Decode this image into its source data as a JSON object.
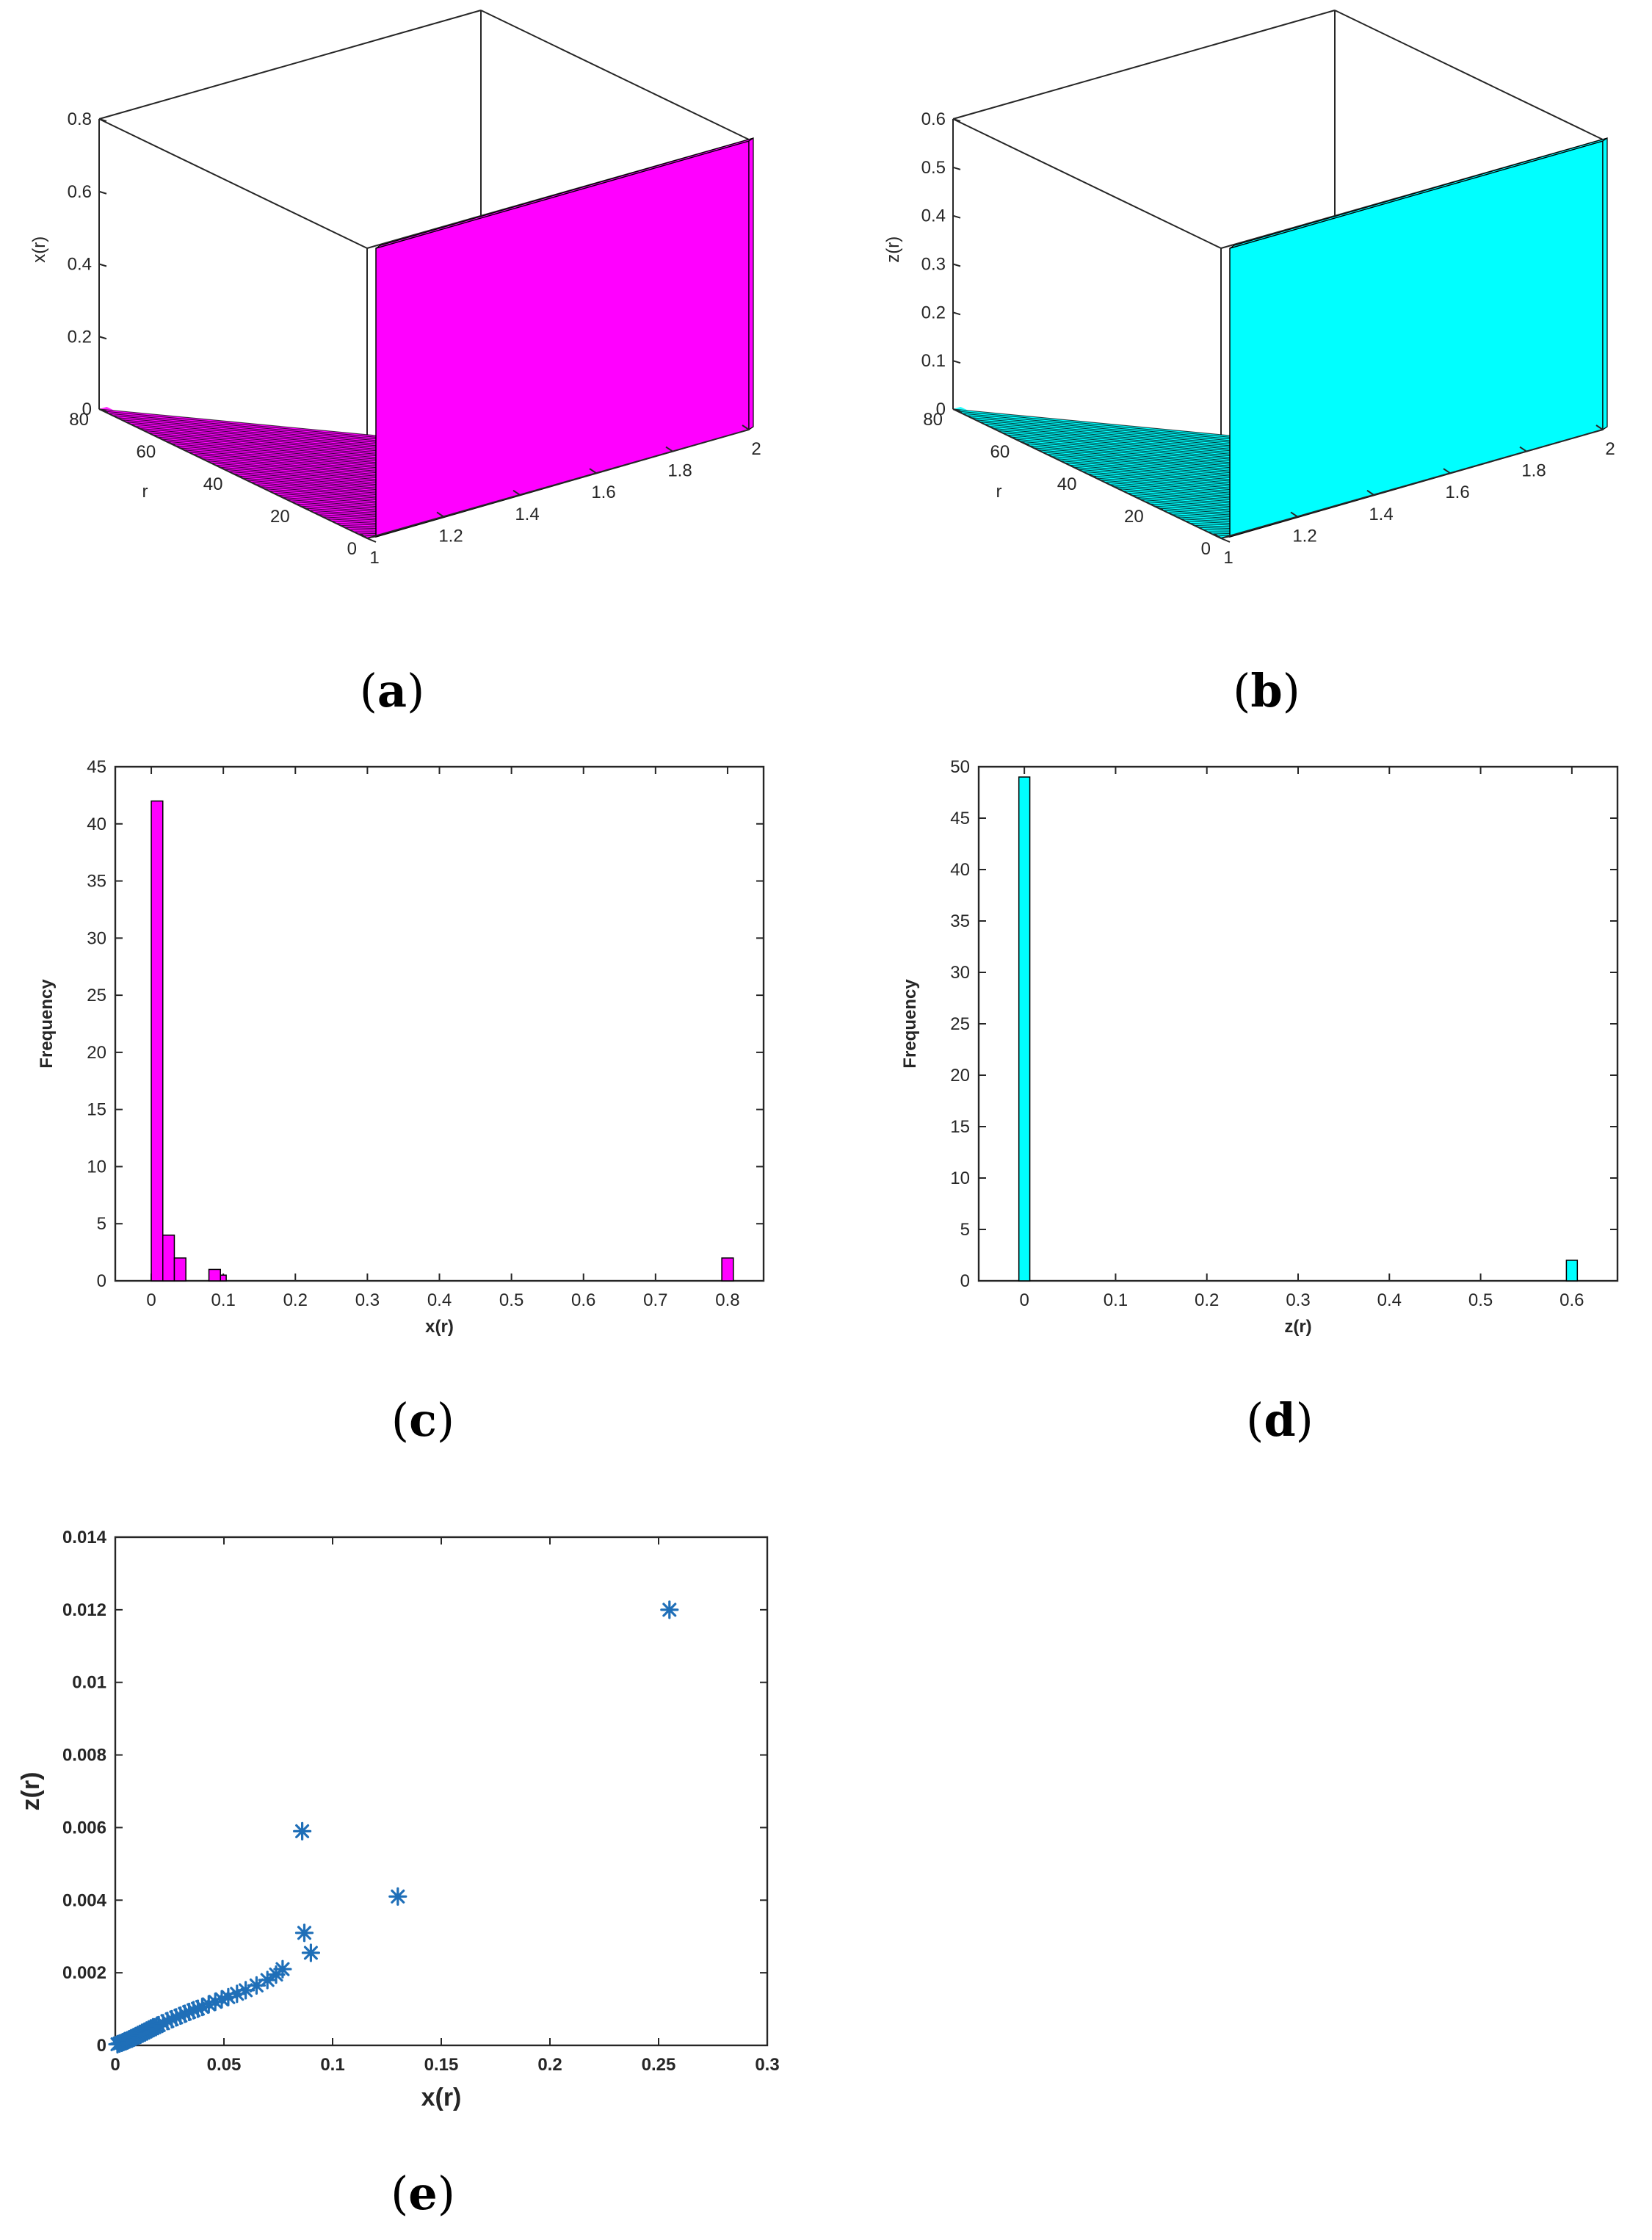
{
  "captions": {
    "a": {
      "open": "(",
      "letter": "a",
      "close": ")"
    },
    "b": {
      "open": "(",
      "letter": "b",
      "close": ")"
    },
    "c": {
      "open": "(",
      "letter": "c",
      "close": ")"
    },
    "d": {
      "open": "(",
      "letter": "d",
      "close": ")"
    },
    "e": {
      "open": "(",
      "letter": "e",
      "close": ")"
    }
  },
  "chart_data": [
    {
      "id": "a",
      "type": "surface",
      "color": "#ff00ff",
      "edge_color": "#000000",
      "zlabel": "x(r)",
      "ylabel": "r",
      "xlabel": "",
      "xlim": [
        1,
        2
      ],
      "ylim": [
        0,
        80
      ],
      "zlim": [
        0,
        0.8
      ],
      "x_ticks": [
        "1",
        "1.2",
        "1.4",
        "1.6",
        "1.8",
        "2"
      ],
      "y_ticks": [
        "0",
        "20",
        "40",
        "60",
        "80"
      ],
      "z_ticks": [
        "0",
        "0.2",
        "0.4",
        "0.6",
        "0.8"
      ],
      "surface": {
        "plateau_x": 0.8,
        "plateau_start_x": 1.0,
        "base_x": 0.08
      }
    },
    {
      "id": "b",
      "type": "surface",
      "color": "#00ffff",
      "edge_color": "#000000",
      "zlabel": "z(r)",
      "ylabel": "r",
      "xlabel": "",
      "xlim": [
        1,
        2
      ],
      "ylim": [
        0,
        80
      ],
      "zlim": [
        0,
        0.6
      ],
      "x_ticks": [
        "1",
        "1.2",
        "1.4",
        "1.6",
        "1.8",
        "2"
      ],
      "y_ticks": [
        "0",
        "20",
        "40",
        "60",
        "80"
      ],
      "z_ticks": [
        "0",
        "0.1",
        "0.2",
        "0.3",
        "0.4",
        "0.5",
        "0.6"
      ],
      "surface": {
        "plateau_z": 0.6,
        "plateau_start_x": 1.0,
        "base_z": 0.0
      }
    },
    {
      "id": "c",
      "type": "bar",
      "color": "#ff00ff",
      "edge_color": "#000000",
      "xlabel": "x(r)",
      "ylabel": "Frequency",
      "xlim": [
        -0.05,
        0.85
      ],
      "ylim": [
        0,
        45
      ],
      "x_ticks": [
        "0",
        "0.1",
        "0.2",
        "0.3",
        "0.4",
        "0.5",
        "0.6",
        "0.7",
        "0.8"
      ],
      "y_ticks": [
        "0",
        "5",
        "10",
        "15",
        "20",
        "25",
        "30",
        "35",
        "40",
        "45"
      ],
      "bins": [
        {
          "left": 0.0,
          "right": 0.016,
          "value": 42
        },
        {
          "left": 0.016,
          "right": 0.032,
          "value": 4
        },
        {
          "left": 0.032,
          "right": 0.048,
          "value": 2
        },
        {
          "left": 0.08,
          "right": 0.096,
          "value": 1
        },
        {
          "left": 0.096,
          "right": 0.104,
          "value": 0.5
        },
        {
          "left": 0.792,
          "right": 0.808,
          "value": 2
        }
      ]
    },
    {
      "id": "d",
      "type": "bar",
      "color": "#00ffff",
      "edge_color": "#000000",
      "xlabel": "z(r)",
      "ylabel": "Frequency",
      "xlim": [
        -0.05,
        0.65
      ],
      "ylim": [
        0,
        50
      ],
      "x_ticks": [
        "0",
        "0.1",
        "0.2",
        "0.3",
        "0.4",
        "0.5",
        "0.6"
      ],
      "y_ticks": [
        "0",
        "5",
        "10",
        "15",
        "20",
        "25",
        "30",
        "35",
        "40",
        "45",
        "50"
      ],
      "bins": [
        {
          "left": -0.006,
          "right": 0.006,
          "value": 49
        },
        {
          "left": 0.594,
          "right": 0.606,
          "value": 2
        }
      ]
    },
    {
      "id": "e",
      "type": "scatter",
      "color": "#1f6fb8",
      "marker": "*",
      "xlabel": "x(r)",
      "ylabel": "z(r)",
      "xlim": [
        0,
        0.3
      ],
      "ylim": [
        0,
        0.014
      ],
      "x_ticks": [
        "0",
        "0.05",
        "0.1",
        "0.15",
        "0.2",
        "0.25",
        "0.3"
      ],
      "y_ticks": [
        "0",
        "0.002",
        "0.004",
        "0.006",
        "0.008",
        "0.01",
        "0.012",
        "0.014"
      ],
      "points": [
        [
          0.001,
          3e-05
        ],
        [
          0.002,
          5e-05
        ],
        [
          0.003,
          7e-05
        ],
        [
          0.004,
          0.0001
        ],
        [
          0.005,
          0.00012
        ],
        [
          0.006,
          0.00015
        ],
        [
          0.007,
          0.00018
        ],
        [
          0.008,
          0.0002
        ],
        [
          0.009,
          0.00023
        ],
        [
          0.01,
          0.00026
        ],
        [
          0.011,
          0.00029
        ],
        [
          0.012,
          0.00032
        ],
        [
          0.013,
          0.00035
        ],
        [
          0.014,
          0.00038
        ],
        [
          0.015,
          0.00041
        ],
        [
          0.016,
          0.00044
        ],
        [
          0.017,
          0.00047
        ],
        [
          0.018,
          0.0005
        ],
        [
          0.019,
          0.00053
        ],
        [
          0.02,
          0.00056
        ],
        [
          0.022,
          0.00061
        ],
        [
          0.024,
          0.00067
        ],
        [
          0.026,
          0.00072
        ],
        [
          0.028,
          0.00077
        ],
        [
          0.03,
          0.00082
        ],
        [
          0.032,
          0.00087
        ],
        [
          0.034,
          0.00092
        ],
        [
          0.036,
          0.00097
        ],
        [
          0.038,
          0.00101
        ],
        [
          0.04,
          0.00106
        ],
        [
          0.043,
          0.00113
        ],
        [
          0.046,
          0.0012
        ],
        [
          0.049,
          0.00127
        ],
        [
          0.052,
          0.00133
        ],
        [
          0.056,
          0.00142
        ],
        [
          0.06,
          0.00152
        ],
        [
          0.065,
          0.00165
        ],
        [
          0.07,
          0.0018
        ],
        [
          0.074,
          0.00195
        ],
        [
          0.077,
          0.0021
        ],
        [
          0.086,
          0.0059
        ],
        [
          0.087,
          0.0031
        ],
        [
          0.09,
          0.00255
        ],
        [
          0.13,
          0.0041
        ],
        [
          0.255,
          0.012
        ]
      ]
    }
  ]
}
